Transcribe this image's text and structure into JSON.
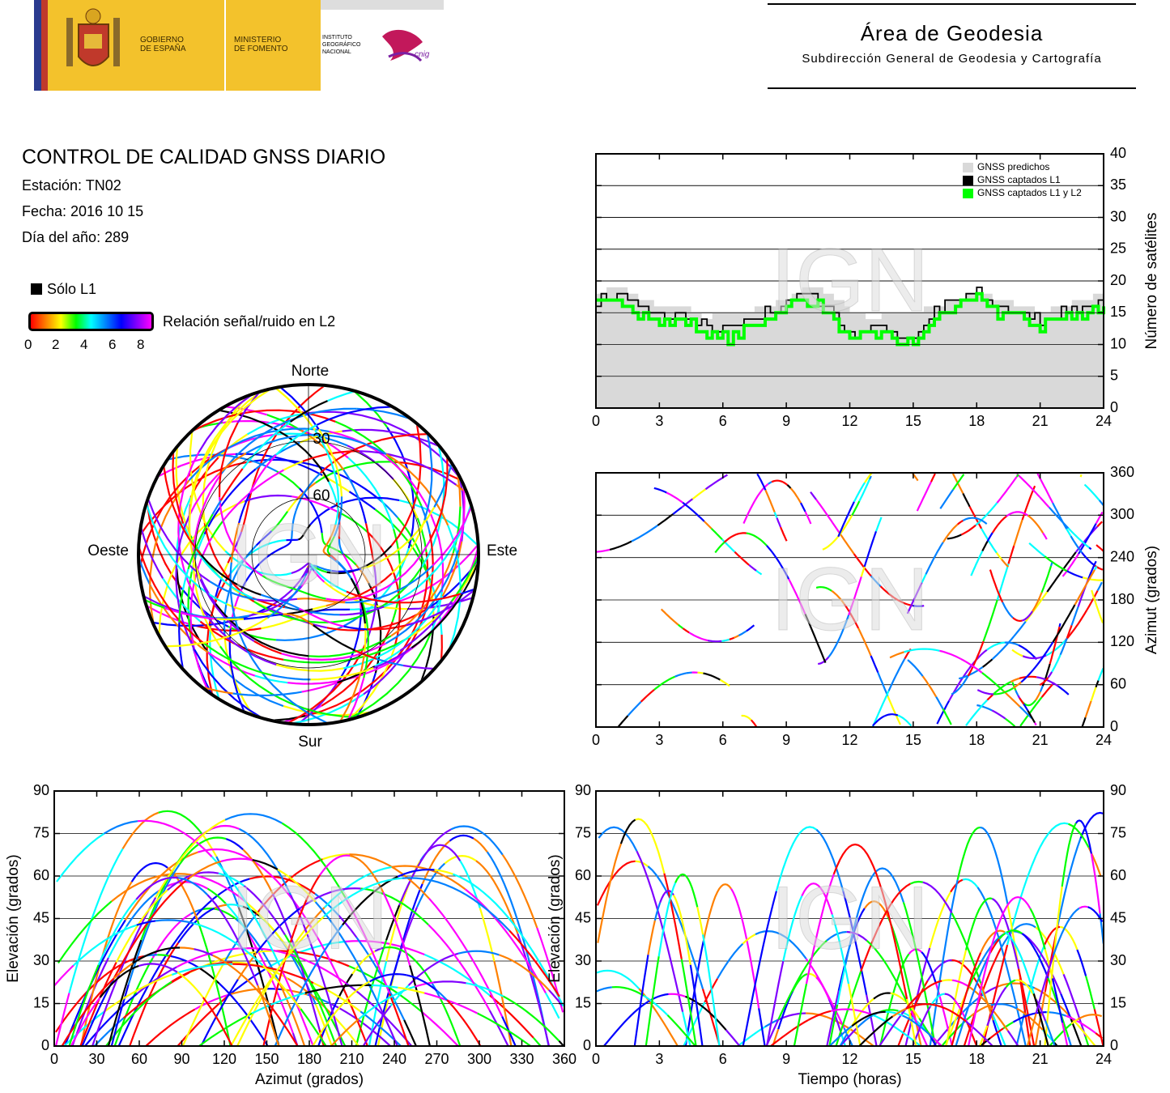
{
  "header": {
    "gov_line1": "GOBIERNO",
    "gov_line2": "DE ESPAÑA",
    "min_line1": "MINISTERIO",
    "min_line2": "DE FOMENTO",
    "inst_line1": "INSTITUTO",
    "inst_line2": "GEOGRÁFICO",
    "inst_line3": "NACIONAL",
    "cnig_logo": "cnig",
    "area_title": "Área de Geodesia",
    "area_subtitle": "Subdirección General de Geodesia y Cartografía"
  },
  "report": {
    "title": "CONTROL DE CALIDAD GNSS DIARIO",
    "station": "Estación: TN02",
    "date": "Fecha: 2016 10 15",
    "doy": "Día del año: 289"
  },
  "legend": {
    "solo_l1": "Sólo L1",
    "snr_label": "Relación señal/ruido en L2",
    "snr_ticks": [
      "0",
      "2",
      "4",
      "6",
      "8"
    ],
    "snr_colors": [
      "#ff0000",
      "#ff8000",
      "#ffff00",
      "#00ff00",
      "#00ffff",
      "#0080ff",
      "#0000ff",
      "#8000ff",
      "#ff00ff"
    ]
  },
  "watermark": "IGN",
  "chart_data": [
    {
      "id": "satellite-count",
      "type": "area",
      "x": [
        0,
        1,
        2,
        3,
        4,
        5,
        6,
        7,
        8,
        9,
        10,
        11,
        12,
        13,
        14,
        15,
        16,
        17,
        18,
        19,
        20,
        21,
        22,
        23,
        24
      ],
      "x_ticks": [
        "0",
        "3",
        "6",
        "9",
        "12",
        "15",
        "18",
        "21",
        "24"
      ],
      "y_ticks": [
        "0",
        "5",
        "10",
        "15",
        "20",
        "25",
        "30",
        "35",
        "40"
      ],
      "xlim": [
        0,
        24
      ],
      "ylim": [
        0,
        40
      ],
      "ylabel": "Número de satélites",
      "legend_position": "top-right",
      "series": [
        {
          "name": "GNSS predichos",
          "color": "#d9d9d9",
          "values": [
            18,
            19,
            17,
            16,
            16,
            14,
            15,
            15,
            16,
            17,
            19,
            18,
            15,
            14,
            15,
            15,
            16,
            17,
            18,
            17,
            16,
            15,
            16,
            17,
            18
          ]
        },
        {
          "name": "GNSS captados L1",
          "color": "#000000",
          "values": [
            17,
            18,
            16,
            14,
            15,
            13,
            12,
            13,
            15,
            17,
            18,
            16,
            11,
            13,
            12,
            11,
            15,
            17,
            18,
            16,
            15,
            14,
            15,
            16,
            17
          ]
        },
        {
          "name": "GNSS captados L1 y L2",
          "color": "#00ff00",
          "values": [
            16,
            17,
            15,
            13,
            14,
            12,
            11,
            12,
            14,
            16,
            17,
            15,
            10,
            12,
            11,
            10,
            14,
            16,
            17,
            15,
            14,
            13,
            14,
            15,
            16
          ]
        }
      ]
    },
    {
      "id": "azimuth-vs-time",
      "type": "scatter",
      "ylabel": "Azimut (grados)",
      "xlim": [
        0,
        24
      ],
      "ylim": [
        0,
        360
      ],
      "x_ticks": [
        "0",
        "3",
        "6",
        "9",
        "12",
        "15",
        "18",
        "21",
        "24"
      ],
      "y_ticks": [
        "0",
        "60",
        "120",
        "180",
        "240",
        "300",
        "360"
      ]
    },
    {
      "id": "elevation-vs-azimuth",
      "type": "scatter",
      "xlabel": "Azimut (grados)",
      "ylabel": "Elevación (grados)",
      "xlim": [
        0,
        360
      ],
      "ylim": [
        0,
        90
      ],
      "x_ticks": [
        "0",
        "30",
        "60",
        "90",
        "120",
        "150",
        "180",
        "210",
        "240",
        "270",
        "300",
        "330",
        "360"
      ],
      "y_ticks": [
        "0",
        "15",
        "30",
        "45",
        "60",
        "75",
        "90"
      ]
    },
    {
      "id": "elevation-vs-time",
      "type": "scatter",
      "xlabel": "Tiempo (horas)",
      "ylabel": "Elevación (grados)",
      "xlim": [
        0,
        24
      ],
      "ylim": [
        0,
        90
      ],
      "x_ticks": [
        "0",
        "3",
        "6",
        "9",
        "12",
        "15",
        "18",
        "21",
        "24"
      ],
      "y_ticks": [
        "0",
        "15",
        "30",
        "45",
        "60",
        "75",
        "90"
      ]
    },
    {
      "id": "skyplot",
      "type": "scatter",
      "directions": {
        "north": "Norte",
        "south": "Sur",
        "east": "Este",
        "west": "Oeste"
      },
      "ring_labels": [
        "30",
        "60"
      ]
    }
  ]
}
